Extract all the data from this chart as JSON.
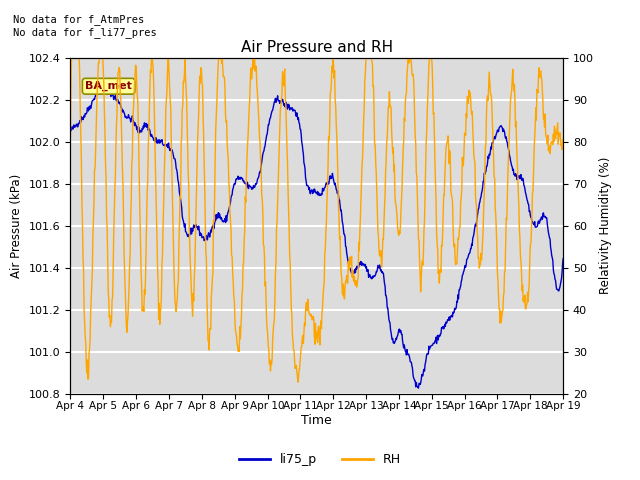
{
  "title": "Air Pressure and RH",
  "xlabel": "Time",
  "ylabel_left": "Air Pressure (kPa)",
  "ylabel_right": "Relativity Humidity (%)",
  "legend_labels": [
    "li75_p",
    "RH"
  ],
  "legend_colors": [
    "#0000cc",
    "#ffaa00"
  ],
  "annotation_text": "No data for f_AtmPres\nNo data for f_li77_pres",
  "station_label": "BA_met",
  "ylim_left": [
    100.8,
    102.4
  ],
  "ylim_right": [
    20,
    100
  ],
  "yticks_left": [
    100.8,
    101.0,
    101.2,
    101.4,
    101.6,
    101.8,
    102.0,
    102.2,
    102.4
  ],
  "yticks_right": [
    20,
    30,
    40,
    50,
    60,
    70,
    80,
    90,
    100
  ],
  "bg_color": "#dcdcdc",
  "line_color_pressure": "#0000cc",
  "line_color_rh": "#ffa500",
  "grid_color": "#ffffff",
  "n_points": 900
}
